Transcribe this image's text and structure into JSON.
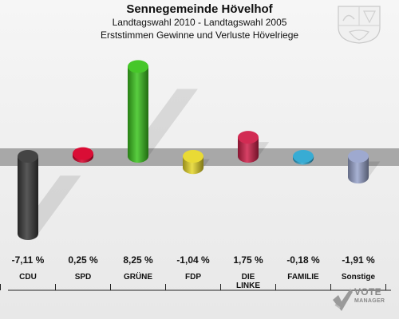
{
  "chart_data": {
    "type": "bar",
    "title": "Sennegemeinde Hövelhof",
    "subtitle1": "Landtagswahl 2010 - Landtagswahl 2005",
    "subtitle2": "Erststimmen Gewinne und Verluste Hövelriege",
    "categories": [
      "CDU",
      "SPD",
      "GRÜNE",
      "FDP",
      "DIE LINKE",
      "FAMILIE",
      "Sonstige"
    ],
    "values": [
      -7.11,
      0.25,
      8.25,
      -1.04,
      1.75,
      -0.18,
      -1.91
    ],
    "value_labels": [
      "-7,11 %",
      "0,25 %",
      "8,25 %",
      "-1,04 %",
      "1,75 %",
      "-0,18 %",
      "-1,91 %"
    ],
    "colors": [
      "#3a3a3a",
      "#d8002a",
      "#3cc41e",
      "#e8d82a",
      "#d0204a",
      "#2ea8d2",
      "#99a4cc"
    ],
    "ylim": [
      -8.5,
      8.5
    ]
  },
  "branding": {
    "logo_line1": "VOTE",
    "logo_line2": "MANAGER",
    "crest_icon": "nrw-coat-of-arms-icon",
    "logo_icon": "checkmark-icon"
  }
}
